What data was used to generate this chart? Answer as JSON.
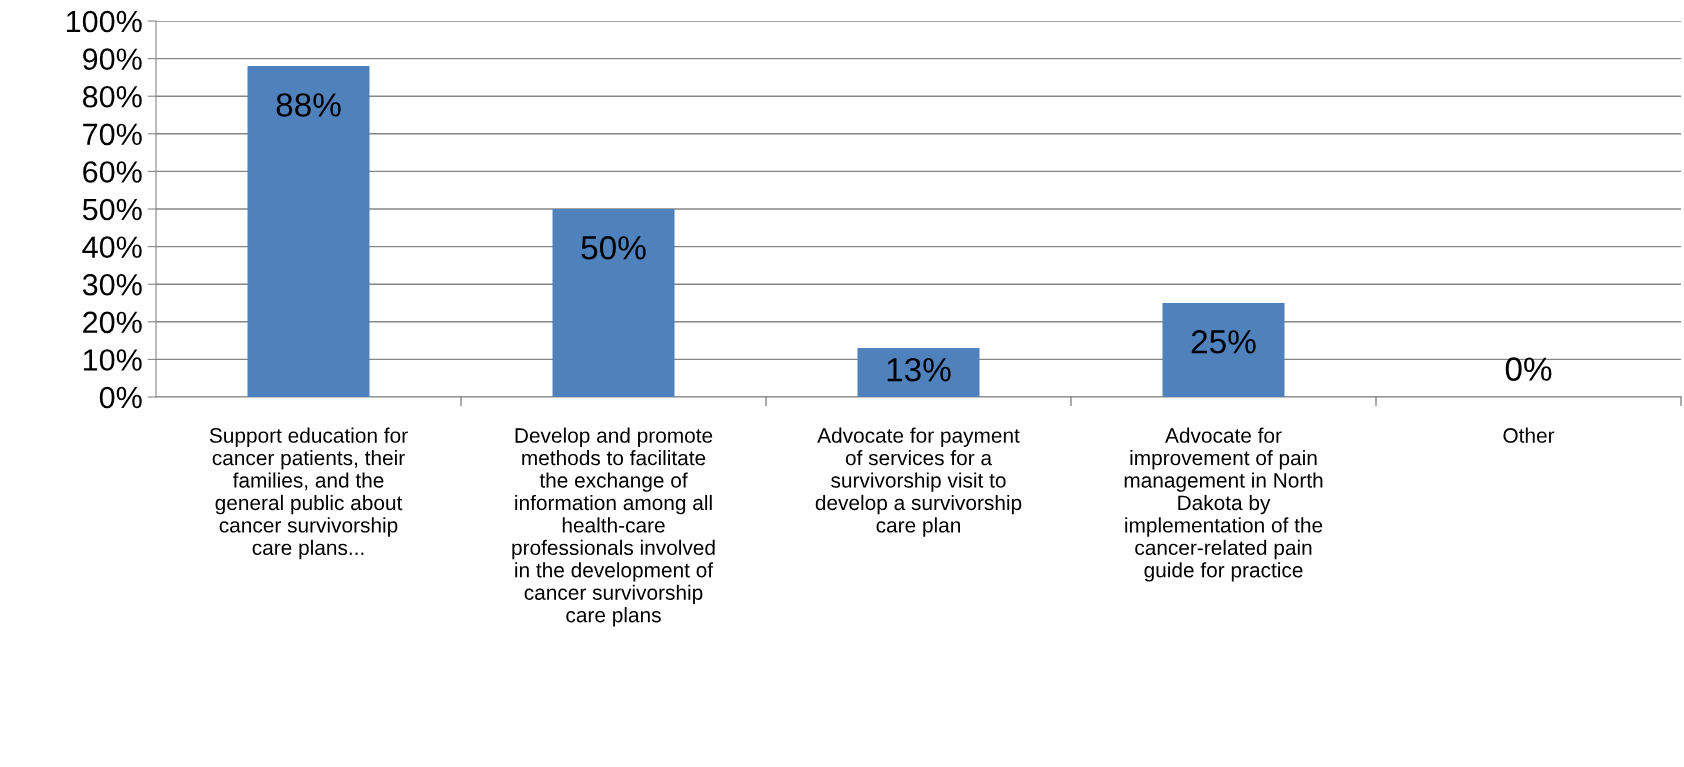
{
  "chart_data": {
    "type": "bar",
    "categories": [
      "Support education for cancer patients, their families, and the general public about cancer survivorship care plans...",
      "Develop and promote methods to facilitate the exchange of information among all health-care professionals involved in the development of cancer survivorship care plans",
      "Advocate for payment of services for a survivorship visit to develop a survivorship care plan",
      "Advocate for improvement of pain management in North Dakota by implementation of the cancer-related pain guide for practice",
      "Other"
    ],
    "values": [
      88,
      50,
      13,
      25,
      0
    ],
    "value_labels": [
      "88%",
      "50%",
      "13%",
      "25%",
      "0%"
    ],
    "color": "#4f81bd",
    "ylim": [
      0,
      100
    ],
    "yticks": [
      {
        "value": 0,
        "label": "0%"
      },
      {
        "value": 10,
        "label": "10%"
      },
      {
        "value": 20,
        "label": "20%"
      },
      {
        "value": 30,
        "label": "30%"
      },
      {
        "value": 40,
        "label": "40%"
      },
      {
        "value": 50,
        "label": "50%"
      },
      {
        "value": 60,
        "label": "60%"
      },
      {
        "value": 70,
        "label": "70%"
      },
      {
        "value": 80,
        "label": "80%"
      },
      {
        "value": 90,
        "label": "90%"
      },
      {
        "value": 100,
        "label": "100%"
      }
    ],
    "grid": "y"
  }
}
